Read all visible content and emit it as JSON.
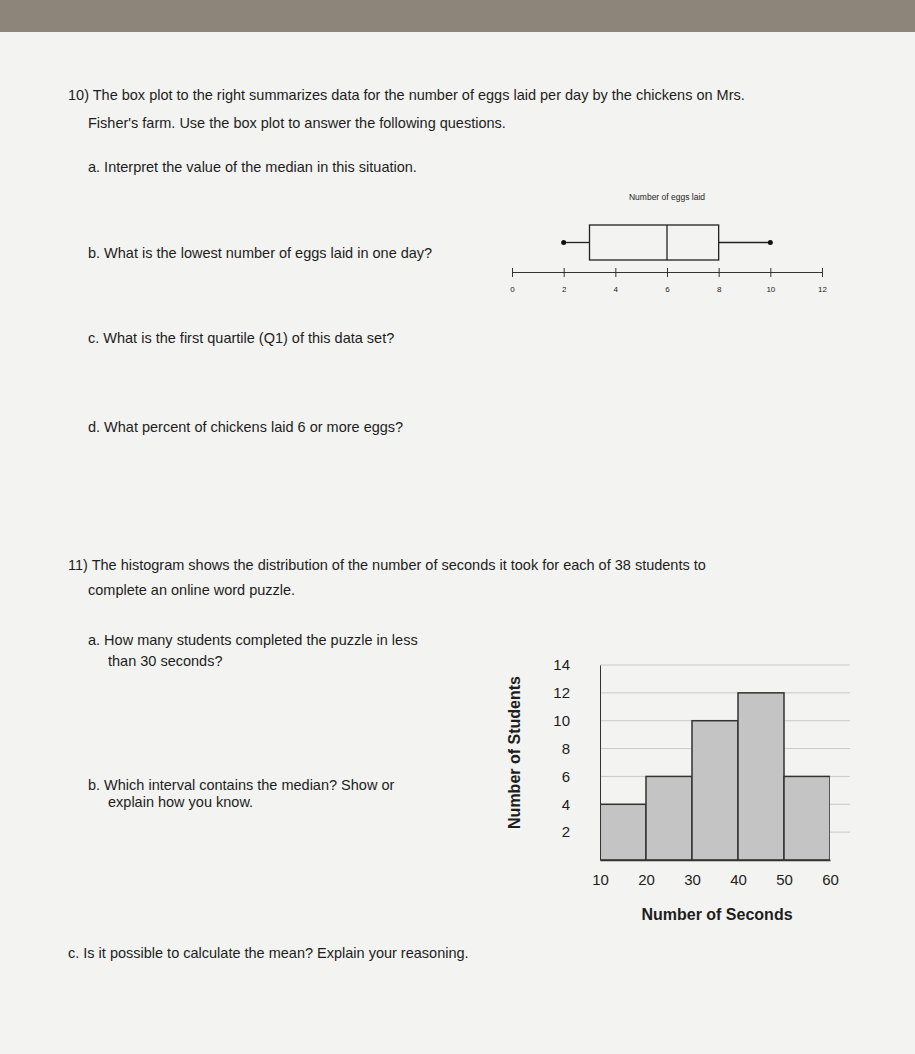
{
  "document": {
    "lines": [
      "10) The box plot to the right summarizes data for the number of eggs laid per day by the chickens on Mrs.",
      "Fisher's farm. Use the box plot to answer the following questions.",
      "a.  Interpret the value of the median in this situation.",
      "b.  What is the lowest number of eggs laid in one day?",
      "c.  What is the first quartile (Q1) of this data set?",
      "d.  What percent of chickens laid 6 or more eggs?",
      "11) The histogram shows the distribution of the number of seconds it took for each of 38 students to",
      "complete an online word puzzle.",
      "a.  How many students completed the puzzle in less",
      "than 30 seconds?",
      "b.  Which interval contains the median?  Show or",
      "explain how you know.",
      "c.  Is it possible to calculate the mean?  Explain your reasoning."
    ]
  },
  "chart_data": [
    {
      "type": "box",
      "title": "Number of eggs laid",
      "orientation": "horizontal",
      "min": 2,
      "q1": 3,
      "median": 6,
      "q3": 8,
      "max": 10,
      "xlim": [
        0,
        12
      ],
      "xticks": [
        0,
        2,
        4,
        6,
        8,
        10,
        12
      ]
    },
    {
      "type": "histogram",
      "xlabel": "Number of Seconds",
      "ylabel": "Number of Students",
      "bins": [
        10,
        20,
        30,
        40,
        50,
        60
      ],
      "values": [
        4,
        6,
        10,
        12,
        6
      ],
      "color": "#c4c4c4",
      "xlim": [
        10,
        60
      ],
      "ylim": [
        0,
        14
      ],
      "xticks": [
        10,
        20,
        30,
        40,
        50,
        60
      ],
      "yticks": [
        2,
        4,
        6,
        8,
        10,
        12,
        14
      ],
      "grid": true
    }
  ]
}
